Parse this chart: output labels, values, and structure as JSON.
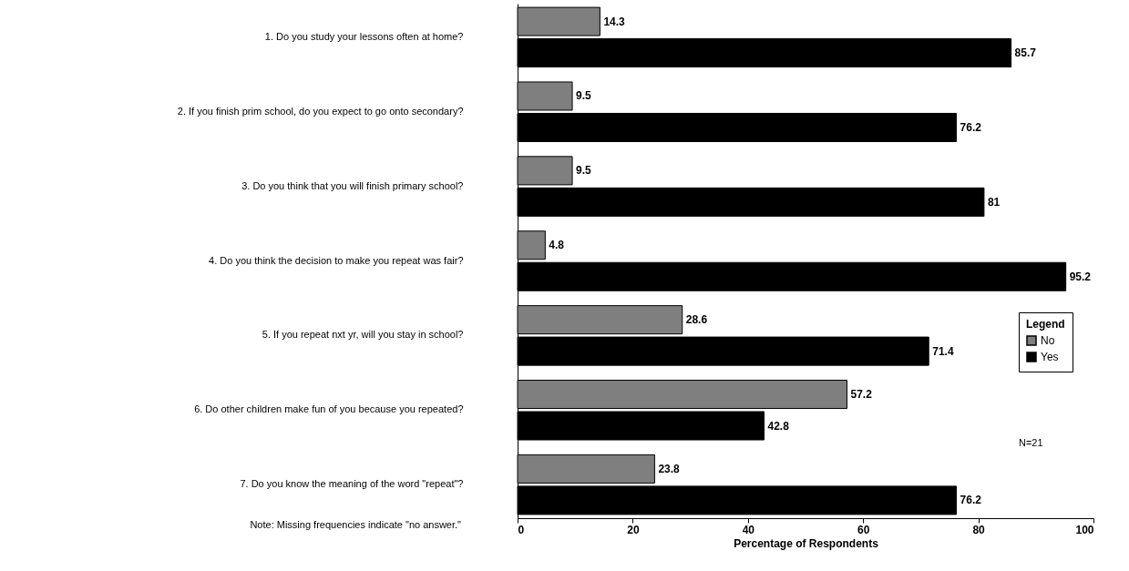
{
  "chart_data": {
    "type": "bar",
    "orientation": "horizontal",
    "categories": [
      "1. Do you study your lessons often at home?",
      "2. If you finish prim school, do you expect to go onto secondary?",
      "3. Do you think that you will finish primary school?",
      "4. Do you think the decision to make you repeat was fair?",
      "5. If you repeat nxt yr, will you stay in school?",
      "6. Do other children make fun of you because you repeated?",
      "7. Do you know the meaning of the word \"repeat\"?"
    ],
    "series": [
      {
        "name": "No",
        "color": "#7f7f7f",
        "values": [
          14.3,
          9.5,
          9.5,
          4.8,
          28.6,
          57.2,
          23.8
        ]
      },
      {
        "name": "Yes",
        "color": "#000000",
        "values": [
          85.7,
          76.2,
          81,
          95.2,
          71.4,
          42.8,
          76.2
        ]
      }
    ],
    "xlabel": "Percentage of Respondents",
    "xlim": [
      0,
      100
    ],
    "xticks": [
      0,
      20,
      40,
      60,
      80,
      100
    ],
    "legend_title": "Legend",
    "legend": "right",
    "data_labels": true,
    "grid": false,
    "annotations": [
      "N=21",
      "Note: Missing frequencies indicate \"no answer.\""
    ]
  }
}
